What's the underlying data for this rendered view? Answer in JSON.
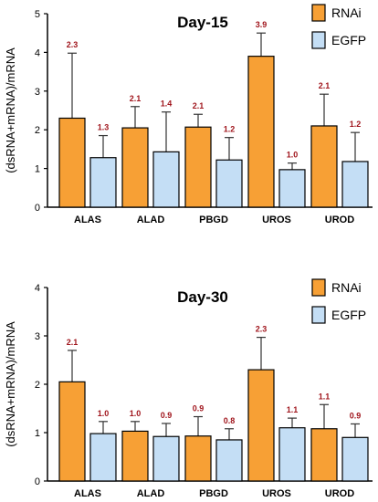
{
  "chart_data": [
    {
      "type": "bar",
      "title": "Day-15",
      "ylabel": "(dsRNA+mRNA)/mRNA",
      "xlabel": "",
      "ylim": [
        0,
        5
      ],
      "yticks": [
        "0",
        "1",
        "2",
        "3",
        "4",
        "5"
      ],
      "categories": [
        "ALAS",
        "ALAD",
        "PBGD",
        "UROS",
        "UROD"
      ],
      "legend_position": "top-right",
      "series": [
        {
          "name": "RNAi",
          "color": "#f7a035",
          "values": [
            2.3,
            2.05,
            2.07,
            3.9,
            2.1
          ],
          "errors": [
            1.68,
            0.55,
            0.33,
            0.6,
            0.82
          ],
          "labels": [
            "2.3",
            "2.1",
            "2.1",
            "3.9",
            "2.1"
          ]
        },
        {
          "name": "EGFP",
          "color": "#c4def5",
          "values": [
            1.28,
            1.43,
            1.22,
            0.97,
            1.18
          ],
          "errors": [
            0.57,
            1.03,
            0.58,
            0.17,
            0.75
          ],
          "labels": [
            "1.3",
            "1.4",
            "1.2",
            "1.0",
            "1.2"
          ]
        }
      ]
    },
    {
      "type": "bar",
      "title": "Day-30",
      "ylabel": "(dsRNA+mRNA)/mRNA",
      "xlabel": "",
      "ylim": [
        0,
        4
      ],
      "yticks": [
        "0",
        "1",
        "2",
        "3",
        "4"
      ],
      "categories": [
        "ALAS",
        "ALAD",
        "PBGD",
        "UROS",
        "UROD"
      ],
      "legend_position": "top-right",
      "series": [
        {
          "name": "RNAi",
          "color": "#f7a035",
          "values": [
            2.05,
            1.03,
            0.93,
            2.3,
            1.08
          ],
          "errors": [
            0.65,
            0.2,
            0.4,
            0.67,
            0.5
          ],
          "labels": [
            "2.1",
            "1.0",
            "0.9",
            "2.3",
            "1.1"
          ]
        },
        {
          "name": "EGFP",
          "color": "#c4def5",
          "values": [
            0.98,
            0.92,
            0.85,
            1.1,
            0.9
          ],
          "errors": [
            0.25,
            0.27,
            0.23,
            0.2,
            0.28
          ],
          "labels": [
            "1.0",
            "0.9",
            "0.8",
            "1.1",
            "0.9"
          ]
        }
      ]
    }
  ]
}
